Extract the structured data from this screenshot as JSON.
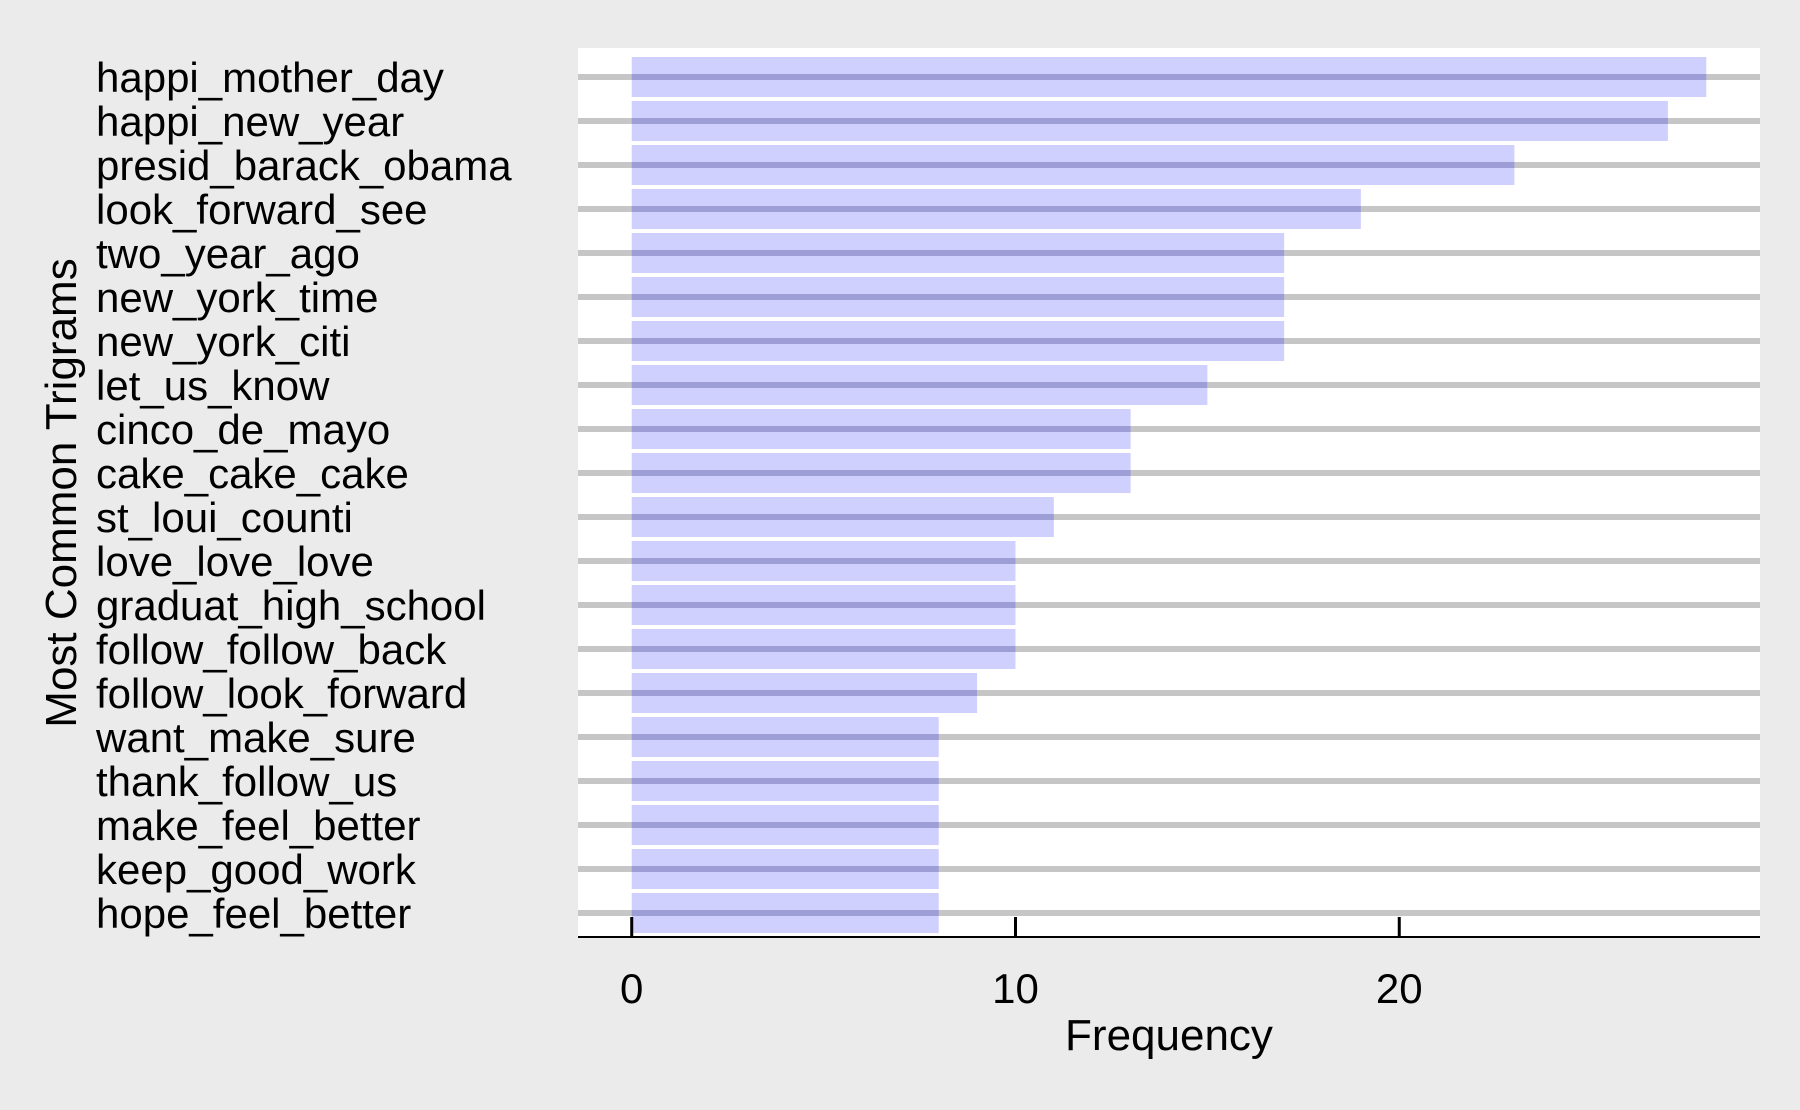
{
  "chart_data": {
    "type": "bar",
    "orientation": "horizontal",
    "title": "",
    "xlabel": "Frequency",
    "ylabel": "Most Common Trigrams",
    "categories": [
      "happi_mother_day",
      "happi_new_year",
      "presid_barack_obama",
      "look_forward_see",
      "two_year_ago",
      "new_york_time",
      "new_york_citi",
      "let_us_know",
      "cinco_de_mayo",
      "cake_cake_cake",
      "st_loui_counti",
      "love_love_love",
      "graduat_high_school",
      "follow_follow_back",
      "follow_look_forward",
      "want_make_sure",
      "thank_follow_us",
      "make_feel_better",
      "keep_good_work",
      "hope_feel_better"
    ],
    "values": [
      28,
      27,
      23,
      19,
      17,
      17,
      17,
      15,
      13,
      13,
      11,
      10,
      10,
      10,
      9,
      8,
      8,
      8,
      8,
      8
    ],
    "x_ticks": [
      0,
      10,
      20
    ],
    "xlim": [
      -1.4,
      29.4
    ],
    "grid": "horizontal lines at each category",
    "legend": "none",
    "colors": {
      "bar_fill": "#ccccff",
      "gridline": "#c6c6c6",
      "panel_background": "#ffffff",
      "plot_background": "#ebebeb",
      "axis_line": "#000000"
    }
  }
}
